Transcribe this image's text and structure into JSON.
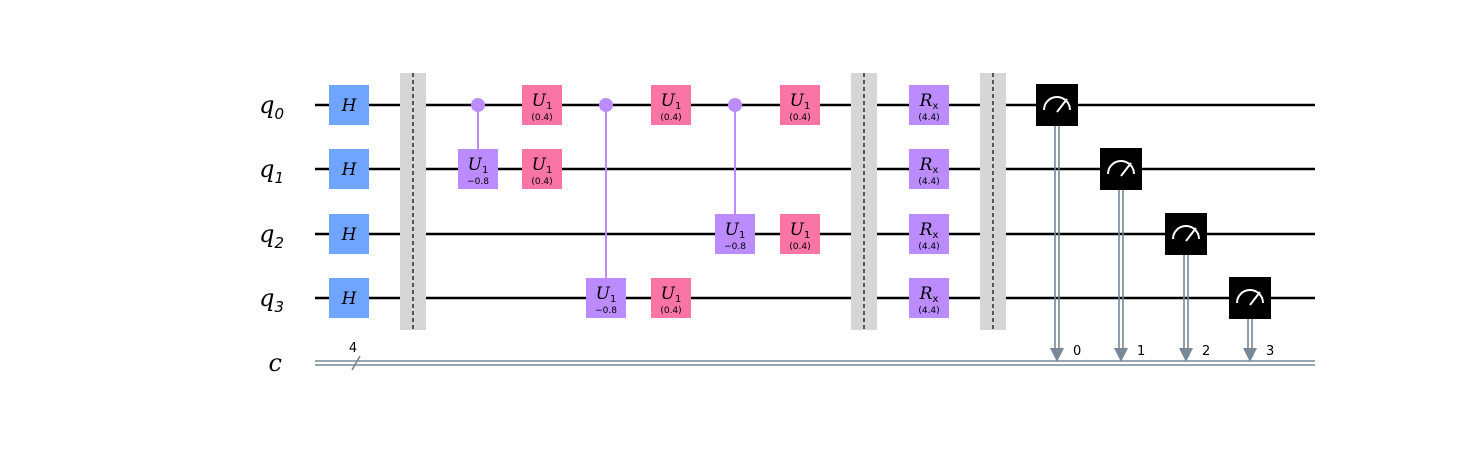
{
  "colors": {
    "hadamard": "#6fa4ff",
    "u1_single": "#fa74a6",
    "controlled": "#bb8bff",
    "rx": "#bb8bff",
    "measure": "#000000",
    "barrier": "#d6d6d6",
    "classical": "#778899"
  },
  "qubits": [
    {
      "label": "q",
      "index": "0"
    },
    {
      "label": "q",
      "index": "1"
    },
    {
      "label": "q",
      "index": "2"
    },
    {
      "label": "q",
      "index": "3"
    }
  ],
  "classical_register": {
    "label": "c",
    "size": "4"
  },
  "columns": [
    {
      "type": "gate",
      "label": "H",
      "sub": "",
      "param": "",
      "color": "hadamard",
      "targets": [
        0,
        1,
        2,
        3
      ]
    },
    {
      "type": "barrier"
    },
    {
      "type": "controlled",
      "control": 0,
      "target": 1,
      "label": "U",
      "sub": "1",
      "param": "−0.8"
    },
    {
      "type": "gate",
      "label": "U",
      "sub": "1",
      "param": "(0.4)",
      "color": "u1_single",
      "targets": [
        0,
        1
      ]
    },
    {
      "type": "controlled",
      "control": 0,
      "target": 3,
      "label": "U",
      "sub": "1",
      "param": "−0.8"
    },
    {
      "type": "gate",
      "label": "U",
      "sub": "1",
      "param": "(0.4)",
      "color": "u1_single",
      "targets": [
        0,
        3
      ]
    },
    {
      "type": "controlled",
      "control": 0,
      "target": 2,
      "label": "U",
      "sub": "1",
      "param": "−0.8"
    },
    {
      "type": "gate",
      "label": "U",
      "sub": "1",
      "param": "(0.4)",
      "color": "u1_single",
      "targets": [
        0,
        2
      ]
    },
    {
      "type": "barrier"
    },
    {
      "type": "gate",
      "label": "R",
      "sub": "x",
      "param": "(4.4)",
      "color": "rx",
      "targets": [
        0,
        1,
        2,
        3
      ]
    },
    {
      "type": "barrier"
    },
    {
      "type": "measure",
      "qubit": 0,
      "bit": "0"
    },
    {
      "type": "measure",
      "qubit": 1,
      "bit": "1"
    },
    {
      "type": "measure",
      "qubit": 2,
      "bit": "2"
    },
    {
      "type": "measure",
      "qubit": 3,
      "bit": "3"
    }
  ]
}
